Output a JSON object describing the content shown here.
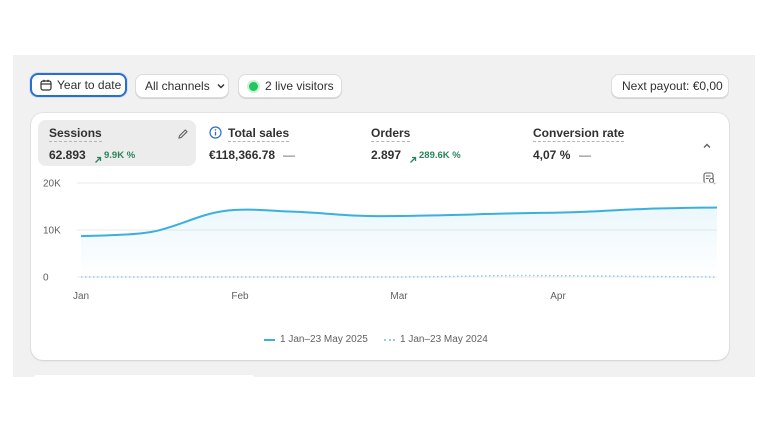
{
  "toolbar": {
    "date_range_label": "Year to date",
    "channels_label": "All channels",
    "live_visitors_label": "2 live visitors",
    "payout_label": "Next payout: €0,00"
  },
  "metrics": [
    {
      "label": "Sessions",
      "value": "62.893",
      "delta": "9.9K %"
    },
    {
      "label": "Total sales",
      "value": "€118,366.78",
      "delta": "—"
    },
    {
      "label": "Orders",
      "value": "2.897",
      "delta": "289.6K %"
    },
    {
      "label": "Conversion rate",
      "value": "4,07 %",
      "delta": "—"
    }
  ],
  "colors": {
    "accent": "#2c6ecb",
    "positive": "#29845a",
    "series_current": "#3bb0dd",
    "series_previous": "#8fcde8",
    "live_dot": "#22c55e"
  },
  "icons": {
    "calendar": "calendar-icon",
    "chevron": "chevron-down-icon",
    "edit": "pencil-icon",
    "info": "info-icon",
    "collapse": "chevron-up-icon",
    "chart_options": "chart-search-icon"
  },
  "chart_data": {
    "type": "line",
    "x_labels": [
      "Jan",
      "Feb",
      "Mar",
      "Apr"
    ],
    "y_ticks": [
      "20K",
      "10K",
      "0"
    ],
    "ylim": [
      0,
      20000
    ],
    "x": [
      "Jan 1",
      "Jan 15",
      "Feb 1",
      "Feb 15",
      "Mar 1",
      "Mar 15",
      "Apr 1",
      "Apr 15",
      "May 1",
      "May 23"
    ],
    "series": [
      {
        "name": "1 Jan–23 May 2025",
        "style": "solid",
        "values": [
          8700,
          9600,
          14000,
          13900,
          13000,
          13100,
          13500,
          13800,
          14500,
          14800
        ]
      },
      {
        "name": "1 Jan–23 May 2024",
        "style": "dotted",
        "values": [
          0,
          0,
          0,
          0,
          0,
          50,
          300,
          250,
          100,
          0
        ]
      }
    ],
    "grid": true,
    "legend_position": "bottom"
  }
}
